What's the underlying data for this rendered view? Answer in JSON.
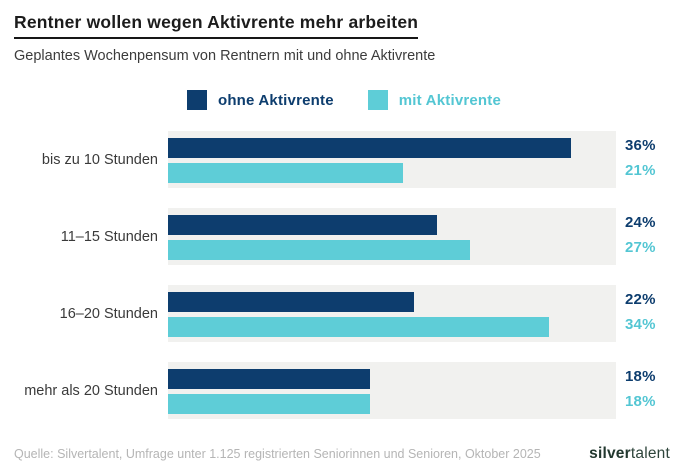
{
  "header": {
    "title": "Rentner wollen wegen Aktivrente mehr arbeiten",
    "subtitle": "Geplantes Wochenpensum von Rentnern mit und ohne Aktivrente"
  },
  "legend": {
    "items": [
      {
        "label": "ohne Aktivrente",
        "color": "#0d3d6e",
        "text_color": "#0d3d6e"
      },
      {
        "label": "mit Aktivrente",
        "color": "#5ecdd7",
        "text_color": "#53c6d3"
      }
    ]
  },
  "chart_data": {
    "type": "bar",
    "orientation": "horizontal",
    "categories": [
      "bis zu 10 Stunden",
      "11–15 Stunden",
      "16–20 Stunden",
      "mehr als 20 Stunden"
    ],
    "series": [
      {
        "name": "ohne Aktivrente",
        "values": [
          36,
          24,
          22,
          18
        ],
        "color": "#0d3d6e"
      },
      {
        "name": "mit Aktivrente",
        "values": [
          21,
          27,
          34,
          18
        ],
        "color": "#5ecdd7"
      }
    ],
    "value_suffix": "%",
    "xlim": [
      0,
      40
    ],
    "grid": false,
    "legend_position": "top-center",
    "track_color": "#f1f1ef",
    "title": "Rentner wollen wegen Aktivrente mehr arbeiten",
    "subtitle": "Geplantes Wochenpensum von Rentnern mit und ohne Aktivrente",
    "xlabel": "",
    "ylabel": ""
  },
  "footer": {
    "source": "Quelle: Silvertalent, Umfrage unter 1.125 registrierten Seniorinnen und Senioren, Oktober 2025",
    "logo_bold": "silver",
    "logo_light": "talent"
  }
}
